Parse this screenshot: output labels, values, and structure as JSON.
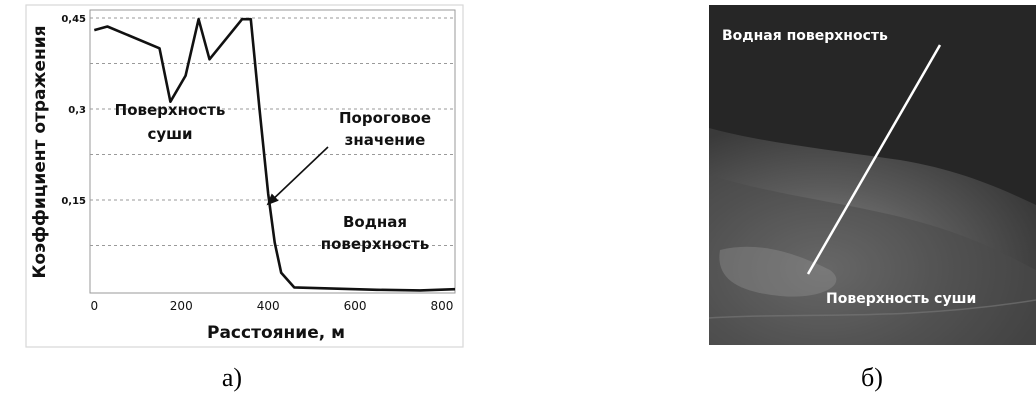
{
  "chart_data": {
    "type": "line",
    "xlabel": "Расстояние, м",
    "ylabel": "Коэффициент отражения",
    "xlim": [
      -10,
      830
    ],
    "ylim": [
      0,
      0.45
    ],
    "xticks": [
      0,
      200,
      400,
      600,
      800
    ],
    "xtick_labels": [
      "0",
      "200",
      "400",
      "600",
      "800"
    ],
    "yticks": [
      0.15,
      0.3,
      0.45
    ],
    "ytick_labels": [
      "0,15",
      "0,3",
      "0,45"
    ],
    "grid": "horizontal dashed",
    "series": [
      {
        "x": [
          0,
          30,
          150,
          175,
          210,
          240,
          265,
          340,
          360,
          380,
          400,
          415,
          430,
          460,
          550,
          650,
          750,
          830
        ],
        "y": [
          0.43,
          0.436,
          0.4,
          0.312,
          0.355,
          0.448,
          0.382,
          0.448,
          0.448,
          0.3,
          0.16,
          0.08,
          0.03,
          0.006,
          0.004,
          0.002,
          0.001,
          0.003
        ]
      }
    ],
    "annotations": [
      {
        "text": [
          "Поверхность",
          "суши"
        ]
      },
      {
        "text": [
          "Пороговое",
          "значение"
        ]
      },
      {
        "text": [
          "Водная",
          "поверхность"
        ]
      }
    ]
  },
  "captions": {
    "left": "а)",
    "right": "б)"
  },
  "photo": {
    "label_water": "Водная поверхность",
    "label_land": "Поверхность суши"
  }
}
